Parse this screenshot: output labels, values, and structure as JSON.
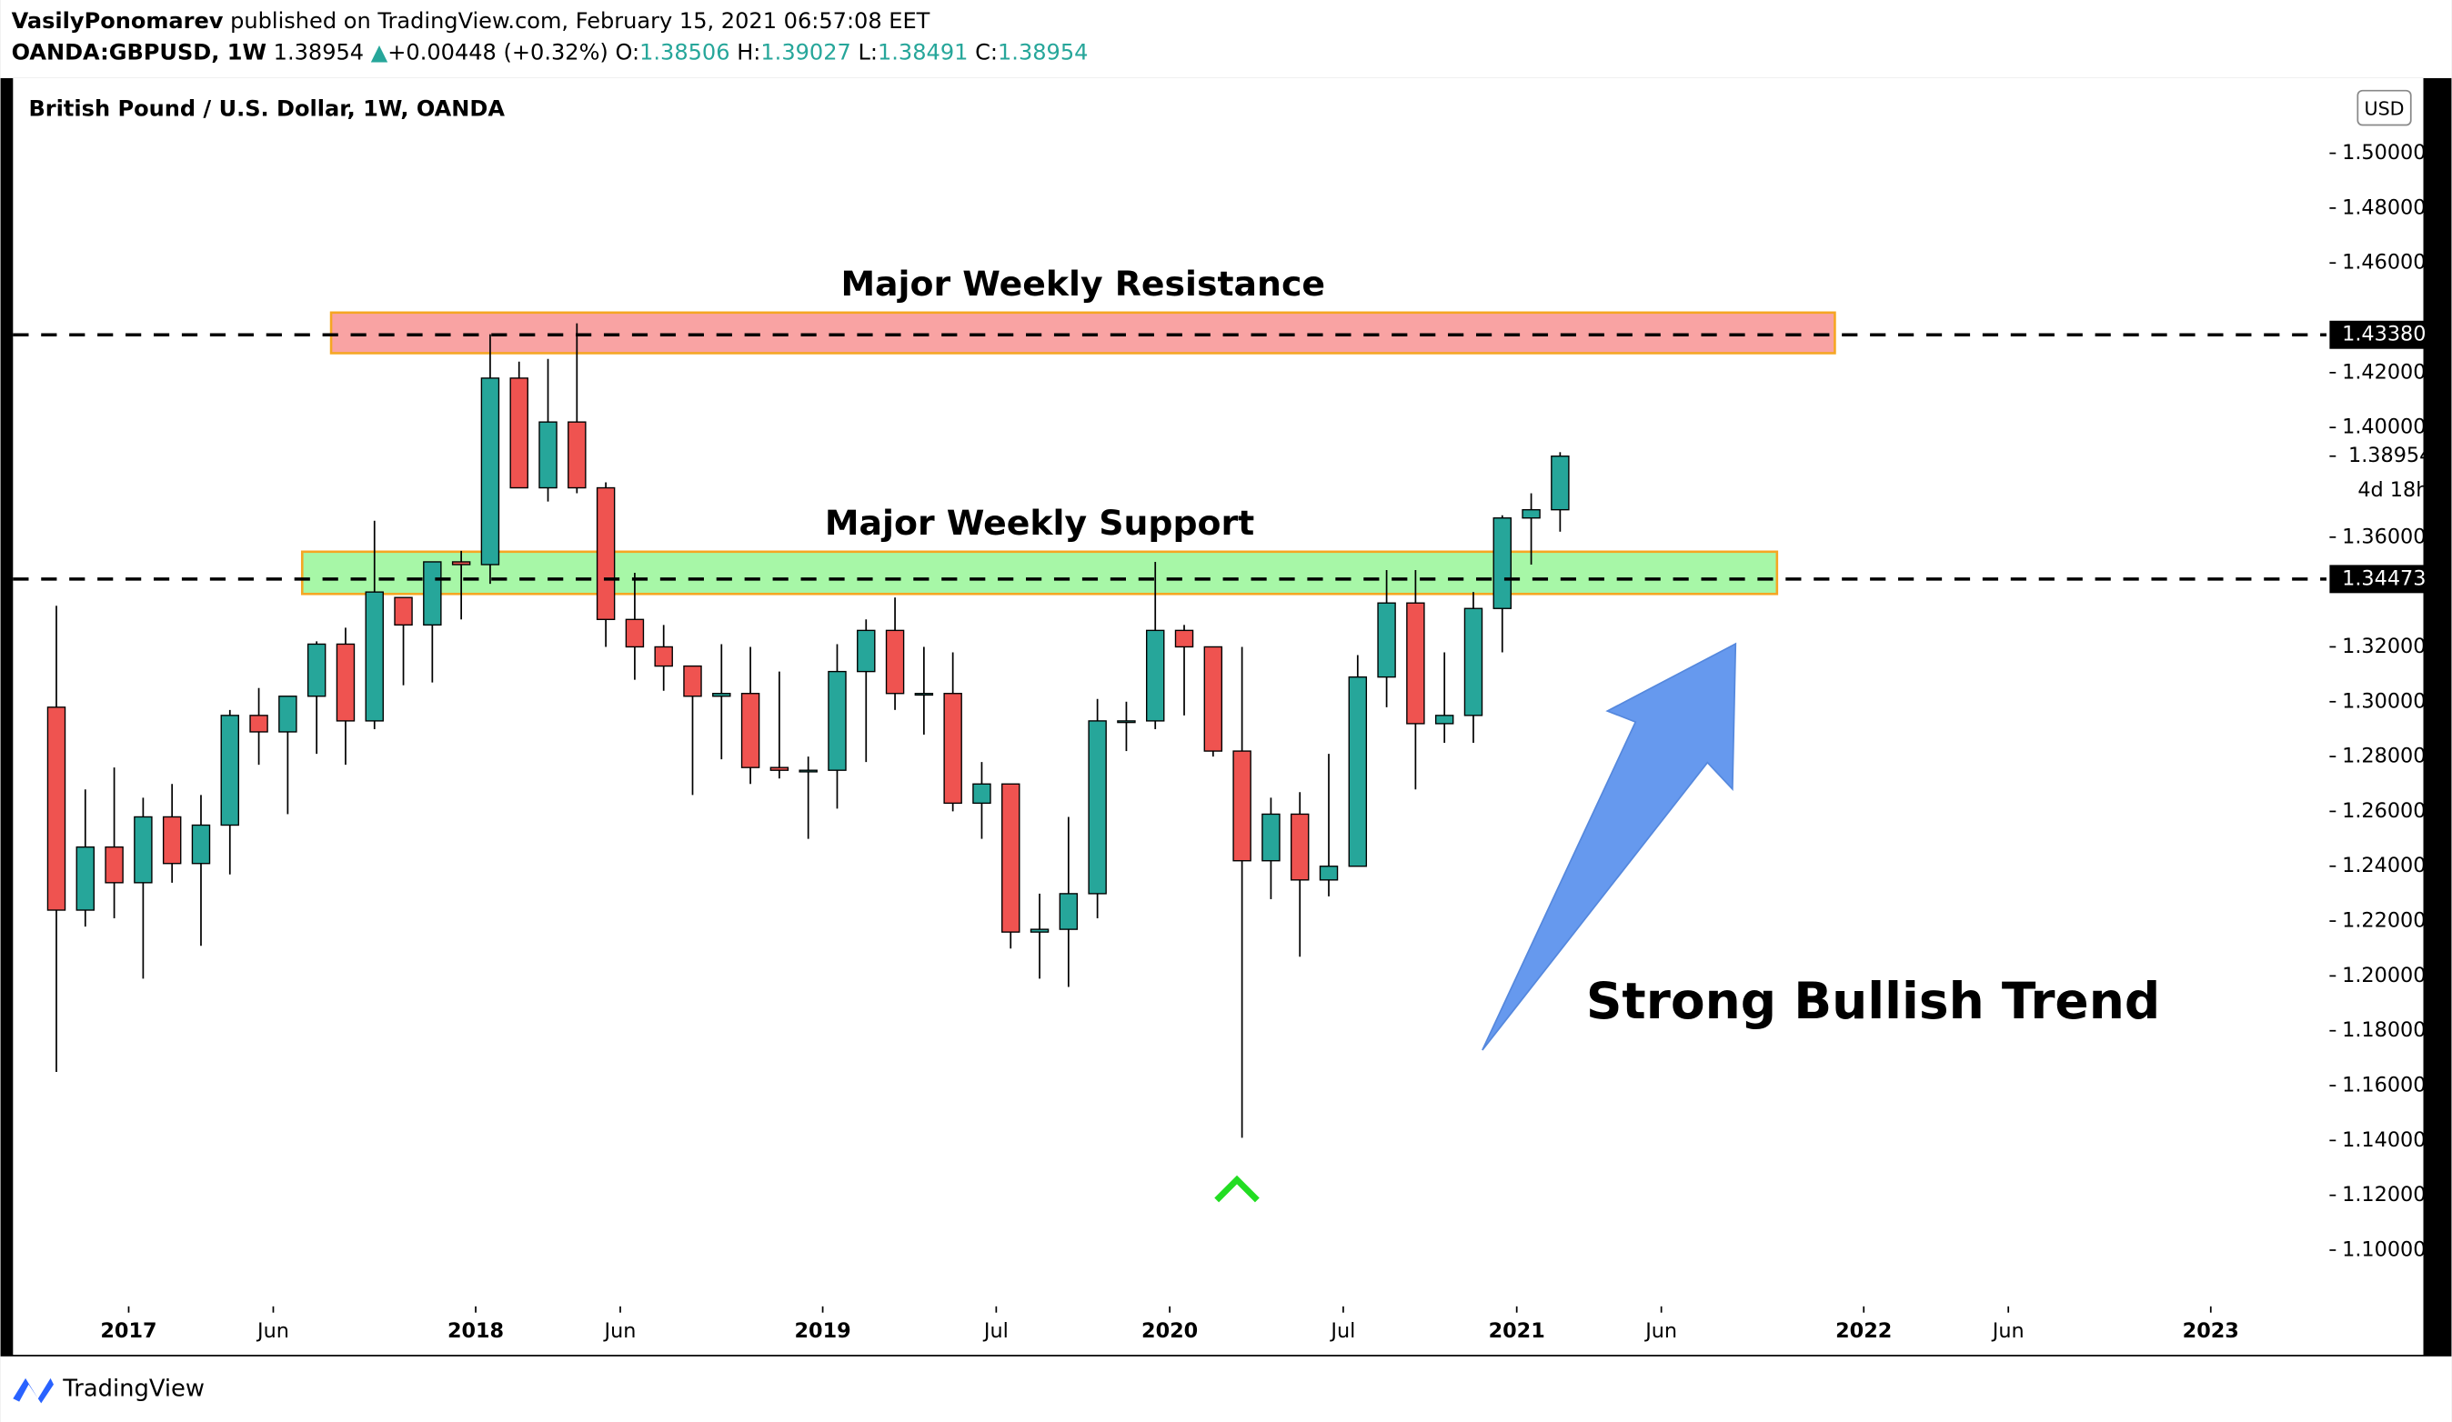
{
  "header": {
    "publisher": "VasilyPonomarev",
    "published": "published on TradingView.com, February 15, 2021 06:57:08 EET",
    "symbol": "OANDA:GBPUSD, 1W",
    "last": "1.38954",
    "change": "+0.00448 (+0.32%)",
    "ohlc": [
      {
        "label": "O:",
        "value": "1.38506"
      },
      {
        "label": "H:",
        "value": "1.39027"
      },
      {
        "label": "L:",
        "value": "1.38491"
      },
      {
        "label": "C:",
        "value": "1.38954"
      }
    ]
  },
  "footer": {
    "brand": "TradingView"
  },
  "chart_data": {
    "type": "candlestick",
    "title": "British Pound / U.S. Dollar, 1W, OANDA",
    "currency": "USD",
    "x": [
      "2016-10",
      "2016-11",
      "2016-12",
      "2017-01",
      "2017-02",
      "2017-03",
      "2017-04",
      "2017-05",
      "2017-06",
      "2017-07",
      "2017-08",
      "2017-09",
      "2017-10",
      "2017-11",
      "2017-12",
      "2018-01",
      "2018-02",
      "2018-03",
      "2018-04",
      "2018-05",
      "2018-06",
      "2018-07",
      "2018-08",
      "2018-09",
      "2018-10",
      "2018-11",
      "2018-12",
      "2019-01",
      "2019-02",
      "2019-03",
      "2019-04",
      "2019-05",
      "2019-06",
      "2019-07",
      "2019-08",
      "2019-09",
      "2019-10",
      "2019-11",
      "2019-12",
      "2020-01",
      "2020-02",
      "2020-03",
      "2020-04",
      "2020-05",
      "2020-06",
      "2020-07",
      "2020-08",
      "2020-09",
      "2020-10",
      "2020-11",
      "2020-12",
      "2021-01",
      "2021-02"
    ],
    "open": [
      1.298,
      1.224,
      1.247,
      1.234,
      1.258,
      1.241,
      1.255,
      1.295,
      1.289,
      1.302,
      1.321,
      1.293,
      1.338,
      1.328,
      1.351,
      1.35,
      1.418,
      1.378,
      1.402,
      1.378,
      1.33,
      1.32,
      1.313,
      1.302,
      1.303,
      1.276,
      1.275,
      1.275,
      1.311,
      1.326,
      1.303,
      1.303,
      1.263,
      1.27,
      1.216,
      1.217,
      1.23,
      1.293,
      1.293,
      1.326,
      1.32,
      1.282,
      1.242,
      1.259,
      1.235,
      1.24,
      1.309,
      1.336,
      1.292,
      1.295,
      1.334,
      1.367,
      1.37
    ],
    "high": [
      1.335,
      1.268,
      1.276,
      1.265,
      1.27,
      1.266,
      1.297,
      1.305,
      1.301,
      1.322,
      1.327,
      1.366,
      1.338,
      1.351,
      1.355,
      1.434,
      1.424,
      1.425,
      1.438,
      1.38,
      1.347,
      1.328,
      1.313,
      1.321,
      1.32,
      1.311,
      1.28,
      1.321,
      1.33,
      1.338,
      1.32,
      1.318,
      1.278,
      1.27,
      1.23,
      1.258,
      1.301,
      1.3,
      1.351,
      1.328,
      1.32,
      1.32,
      1.265,
      1.267,
      1.281,
      1.317,
      1.348,
      1.348,
      1.318,
      1.34,
      1.368,
      1.376,
      1.391
    ],
    "low": [
      1.165,
      1.218,
      1.221,
      1.199,
      1.234,
      1.211,
      1.237,
      1.277,
      1.259,
      1.281,
      1.277,
      1.29,
      1.306,
      1.307,
      1.33,
      1.343,
      1.378,
      1.373,
      1.376,
      1.32,
      1.308,
      1.304,
      1.266,
      1.279,
      1.27,
      1.272,
      1.25,
      1.261,
      1.278,
      1.297,
      1.288,
      1.26,
      1.25,
      1.21,
      1.199,
      1.196,
      1.221,
      1.282,
      1.29,
      1.295,
      1.28,
      1.141,
      1.228,
      1.207,
      1.229,
      1.24,
      1.298,
      1.268,
      1.285,
      1.285,
      1.318,
      1.35,
      1.362
    ],
    "close": [
      1.224,
      1.247,
      1.234,
      1.258,
      1.241,
      1.255,
      1.295,
      1.289,
      1.302,
      1.321,
      1.293,
      1.34,
      1.328,
      1.351,
      1.35,
      1.418,
      1.378,
      1.402,
      1.378,
      1.33,
      1.32,
      1.313,
      1.302,
      1.303,
      1.276,
      1.275,
      1.275,
      1.311,
      1.326,
      1.303,
      1.303,
      1.263,
      1.27,
      1.216,
      1.217,
      1.23,
      1.293,
      1.293,
      1.326,
      1.32,
      1.282,
      1.242,
      1.259,
      1.235,
      1.24,
      1.309,
      1.336,
      1.292,
      1.295,
      1.334,
      1.367,
      1.37,
      1.38954
    ],
    "up_color": "#26a69a",
    "down_color": "#ef5350",
    "xlim": [
      "2016-09",
      "2023-05"
    ],
    "xticks": [
      {
        "value": "2017-01",
        "label": "2017"
      },
      {
        "value": "2017-06",
        "label": "Jun"
      },
      {
        "value": "2018-01",
        "label": "2018"
      },
      {
        "value": "2018-06",
        "label": "Jun"
      },
      {
        "value": "2019-01",
        "label": "2019"
      },
      {
        "value": "2019-07",
        "label": "Jul"
      },
      {
        "value": "2020-01",
        "label": "2020"
      },
      {
        "value": "2020-07",
        "label": "Jul"
      },
      {
        "value": "2021-01",
        "label": "2021"
      },
      {
        "value": "2021-06",
        "label": "Jun"
      },
      {
        "value": "2022-01",
        "label": "2022"
      },
      {
        "value": "2022-06",
        "label": "Jun"
      },
      {
        "value": "2023-01",
        "label": "2023"
      }
    ],
    "ylim": [
      1.0795,
      1.5274
    ],
    "yticks": [
      {
        "value": 1.1,
        "label": "1.10000"
      },
      {
        "value": 1.12,
        "label": "1.12000"
      },
      {
        "value": 1.14,
        "label": "1.14000"
      },
      {
        "value": 1.16,
        "label": "1.16000"
      },
      {
        "value": 1.18,
        "label": "1.18000"
      },
      {
        "value": 1.2,
        "label": "1.20000"
      },
      {
        "value": 1.22,
        "label": "1.22000"
      },
      {
        "value": 1.24,
        "label": "1.24000"
      },
      {
        "value": 1.26,
        "label": "1.26000"
      },
      {
        "value": 1.28,
        "label": "1.28000"
      },
      {
        "value": 1.3,
        "label": "1.30000"
      },
      {
        "value": 1.32,
        "label": "1.32000"
      },
      {
        "value": 1.36,
        "label": "1.36000"
      },
      {
        "value": 1.4,
        "label": "1.40000"
      },
      {
        "value": 1.42,
        "label": "1.42000"
      },
      {
        "value": 1.46,
        "label": "1.46000"
      },
      {
        "value": 1.48,
        "label": "1.48000"
      },
      {
        "value": 1.5,
        "label": "1.50000"
      }
    ],
    "zones": [
      {
        "name": "Major Weekly Resistance",
        "low": 1.4271,
        "high": 1.4419,
        "start": "2017-08",
        "end": "2021-12",
        "color": "#f9a3a3"
      },
      {
        "name": "Major Weekly Support",
        "low": 1.3393,
        "high": 1.3547,
        "start": "2017-07",
        "end": "2021-10",
        "color": "#a7f7a7"
      }
    ],
    "levels": [
      {
        "value": 1.4338,
        "label": "1.43380"
      },
      {
        "value": 1.34473,
        "label": "1.34473"
      }
    ],
    "last_price": {
      "value": 1.38954,
      "label": "1.38954"
    },
    "countdown": "4d 18h",
    "annotation": "Strong Bullish Trend"
  }
}
